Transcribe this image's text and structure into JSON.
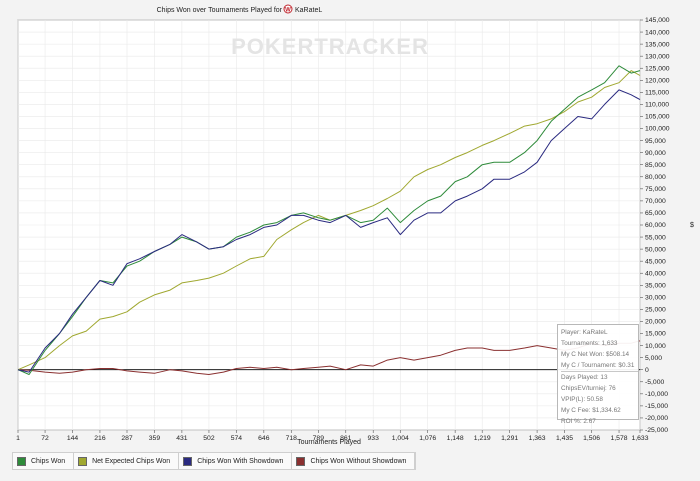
{
  "watermark": "POKERTRACKER",
  "ylabel": "$",
  "chart_data": {
    "type": "line",
    "title": "Chips Won over Tournaments Played for",
    "player": "KaRateL",
    "xlabel": "Tournaments Played",
    "xlim": [
      1,
      1633
    ],
    "ylim": [
      -25000,
      145000
    ],
    "grid": true,
    "legend_position": "bottom",
    "x_ticks": [
      "1",
      "72",
      "144",
      "216",
      "287",
      "359",
      "431",
      "502",
      "574",
      "646",
      "718",
      "789",
      "861",
      "933",
      "1,004",
      "1,076",
      "1,148",
      "1,219",
      "1,291",
      "1,363",
      "1,435",
      "1,506",
      "1,578",
      "1,633"
    ],
    "y_ticks": [
      "145,000",
      "140,000",
      "135,000",
      "130,000",
      "125,000",
      "120,000",
      "115,000",
      "110,000",
      "105,000",
      "100,000",
      "95,000",
      "90,000",
      "85,000",
      "80,000",
      "75,000",
      "70,000",
      "65,000",
      "60,000",
      "55,000",
      "50,000",
      "45,000",
      "40,000",
      "35,000",
      "30,000",
      "25,000",
      "20,000",
      "15,000",
      "10,000",
      "5,000",
      "0",
      "-5,000",
      "-10,000",
      "-15,000",
      "-20,000",
      "-25,000"
    ],
    "x": [
      1,
      30,
      72,
      110,
      144,
      180,
      216,
      250,
      287,
      320,
      359,
      400,
      431,
      470,
      502,
      540,
      574,
      610,
      646,
      680,
      718,
      750,
      789,
      820,
      861,
      900,
      933,
      970,
      1004,
      1040,
      1076,
      1110,
      1148,
      1180,
      1219,
      1250,
      1291,
      1330,
      1363,
      1400,
      1435,
      1470,
      1506,
      1540,
      1578,
      1610,
      1633
    ],
    "series": [
      {
        "name": "Chips Won",
        "color": "#2e8b3a",
        "values": [
          0,
          -2000,
          8000,
          15000,
          22000,
          30000,
          37000,
          36000,
          43000,
          45000,
          49000,
          52000,
          55000,
          53000,
          50000,
          51000,
          55000,
          57000,
          60000,
          61000,
          64000,
          65000,
          63000,
          62000,
          64000,
          61000,
          62000,
          67000,
          61000,
          66000,
          70000,
          72000,
          78000,
          80000,
          85000,
          86000,
          86000,
          90000,
          95000,
          103000,
          108000,
          113000,
          116000,
          119000,
          126000,
          123000,
          124000
        ]
      },
      {
        "name": "Net Expected Chips Won",
        "color": "#a0a830",
        "values": [
          0,
          2000,
          5000,
          10000,
          14000,
          16000,
          21000,
          22000,
          24000,
          28000,
          31000,
          33000,
          36000,
          37000,
          38000,
          40000,
          43000,
          46000,
          47000,
          54000,
          58000,
          61000,
          64000,
          62000,
          64000,
          66000,
          68000,
          71000,
          74000,
          80000,
          83000,
          85000,
          88000,
          90000,
          93000,
          95000,
          98000,
          101000,
          102000,
          104000,
          107000,
          111000,
          113000,
          117000,
          119000,
          124000,
          122000
        ]
      },
      {
        "name": "Chips Won With Showdown",
        "color": "#2a2a80",
        "values": [
          0,
          -1000,
          9000,
          15000,
          23000,
          30000,
          37000,
          35000,
          44000,
          46000,
          49000,
          52000,
          56000,
          53000,
          50000,
          51000,
          54000,
          56000,
          59000,
          60000,
          64000,
          64000,
          62000,
          61000,
          64000,
          59000,
          61000,
          63000,
          56000,
          62000,
          65000,
          65000,
          70000,
          72000,
          75000,
          79000,
          79000,
          82000,
          86000,
          95000,
          100000,
          105000,
          104000,
          110000,
          116000,
          114000,
          112000
        ]
      },
      {
        "name": "Chips Won Without Showdown",
        "color": "#8a3030",
        "values": [
          0,
          -200,
          -1000,
          -1500,
          -1000,
          0,
          500,
          500,
          -500,
          -1000,
          -1500,
          0,
          -500,
          -1500,
          -2000,
          -1000,
          500,
          1000,
          500,
          1000,
          0,
          500,
          1000,
          1500,
          0,
          2000,
          1500,
          4000,
          5000,
          4000,
          5000,
          6000,
          8000,
          9000,
          9000,
          8000,
          8000,
          9000,
          10000,
          9000,
          8000,
          9000,
          11000,
          10000,
          11000,
          11000,
          12000
        ]
      }
    ]
  },
  "stats": {
    "player": "Player: KaRateL",
    "tournaments": "Tournaments: 1,633",
    "net_won": "My C Net Won: $508.14",
    "per_tournament": "My C / Tournament: $0.31",
    "days_played": "Days Played: 13",
    "chipsev": "ChipsEV/turniej: 76",
    "vpip": "VPIP(L): 50.58",
    "fee": "My C Fee: $1,334.62",
    "roi": "ROI %: 2.67"
  }
}
